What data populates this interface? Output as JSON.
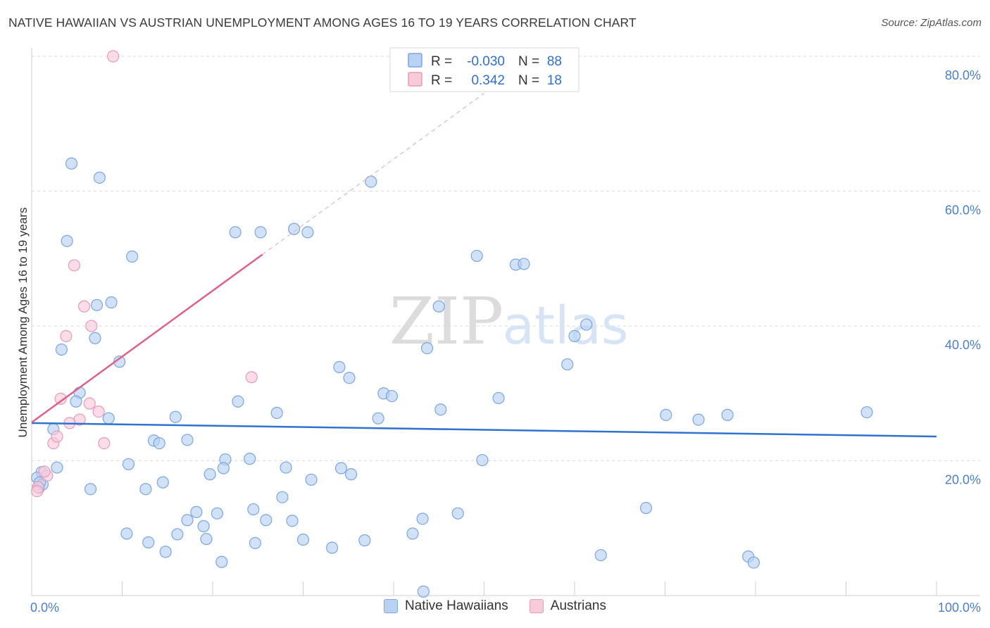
{
  "title": "NATIVE HAWAIIAN VS AUSTRIAN UNEMPLOYMENT AMONG AGES 16 TO 19 YEARS CORRELATION CHART",
  "source": "Source: ZipAtlas.com",
  "watermark": {
    "zip": "ZIP",
    "atlas": "atlas"
  },
  "colors": {
    "blue_fill": "#b9d1f3",
    "blue_stroke": "#7aa6e3",
    "blue_line": "#2f72cf",
    "pink_fill": "#f8cbdb",
    "pink_stroke": "#e99ab6",
    "pink_line": "#e0608c",
    "grid": "#d9d9d9",
    "tick_text": "#4a7fd0"
  },
  "stats": [
    {
      "r_label": "R =",
      "r_value": "-0.030",
      "n_label": "N =",
      "n_value": "88"
    },
    {
      "r_label": "R =",
      "r_value": "0.342",
      "n_label": "N =",
      "n_value": "18"
    }
  ],
  "chart_data": {
    "type": "scatter",
    "title": "NATIVE HAWAIIAN VS AUSTRIAN UNEMPLOYMENT AMONG AGES 16 TO 19 YEARS CORRELATION CHART",
    "xlabel": "",
    "ylabel": "Unemployment Among Ages 16 to 19 years",
    "xlim": [
      0,
      100
    ],
    "ylim": [
      0,
      80
    ],
    "x_tick_labels": [
      "0.0%",
      "100.0%"
    ],
    "y_ticks": [
      20,
      40,
      60,
      80
    ],
    "y_tick_labels": [
      "20.0%",
      "40.0%",
      "60.0%",
      "80.0%"
    ],
    "legend_position": "bottom-center",
    "series": [
      {
        "name": "Native Hawaiians",
        "color": "#b9d1f3",
        "trend": {
          "x": [
            0,
            100
          ],
          "y": [
            25.6,
            23.6
          ],
          "dashed_ext": false
        },
        "points": [
          [
            4.4,
            64.1
          ],
          [
            7.5,
            62.0
          ],
          [
            3.9,
            52.6
          ],
          [
            11.1,
            50.3
          ],
          [
            22.5,
            53.9
          ],
          [
            25.3,
            53.9
          ],
          [
            29.0,
            54.4
          ],
          [
            30.5,
            53.9
          ],
          [
            37.5,
            61.4
          ],
          [
            49.2,
            50.4
          ],
          [
            53.5,
            49.1
          ],
          [
            54.4,
            49.2
          ],
          [
            8.8,
            43.5
          ],
          [
            7.2,
            43.1
          ],
          [
            3.3,
            36.5
          ],
          [
            7.0,
            38.2
          ],
          [
            9.7,
            34.7
          ],
          [
            45.0,
            42.9
          ],
          [
            61.3,
            40.2
          ],
          [
            60.0,
            38.5
          ],
          [
            34.0,
            33.9
          ],
          [
            35.1,
            32.3
          ],
          [
            43.7,
            36.7
          ],
          [
            59.2,
            34.3
          ],
          [
            5.3,
            30.1
          ],
          [
            4.9,
            28.8
          ],
          [
            38.9,
            30.0
          ],
          [
            39.8,
            29.6
          ],
          [
            22.8,
            28.8
          ],
          [
            27.1,
            27.1
          ],
          [
            45.2,
            27.6
          ],
          [
            51.6,
            29.3
          ],
          [
            8.5,
            26.3
          ],
          [
            15.9,
            26.5
          ],
          [
            38.3,
            26.3
          ],
          [
            70.1,
            26.8
          ],
          [
            73.7,
            26.1
          ],
          [
            76.9,
            26.8
          ],
          [
            92.3,
            27.2
          ],
          [
            2.4,
            24.7
          ],
          [
            13.5,
            23.0
          ],
          [
            14.1,
            22.6
          ],
          [
            17.2,
            23.1
          ],
          [
            1.1,
            18.3
          ],
          [
            2.8,
            19.0
          ],
          [
            10.7,
            19.5
          ],
          [
            21.4,
            20.2
          ],
          [
            24.1,
            20.3
          ],
          [
            30.9,
            17.2
          ],
          [
            34.2,
            18.9
          ],
          [
            35.3,
            18.0
          ],
          [
            28.1,
            19.0
          ],
          [
            49.8,
            20.1
          ],
          [
            0.8,
            16.0
          ],
          [
            0.6,
            17.5
          ],
          [
            6.5,
            15.8
          ],
          [
            12.6,
            15.8
          ],
          [
            14.5,
            16.8
          ],
          [
            19.7,
            18.0
          ],
          [
            21.2,
            18.9
          ],
          [
            27.7,
            14.6
          ],
          [
            18.2,
            12.4
          ],
          [
            20.5,
            12.2
          ],
          [
            24.5,
            12.8
          ],
          [
            17.2,
            11.2
          ],
          [
            19.0,
            10.3
          ],
          [
            25.9,
            11.2
          ],
          [
            28.8,
            11.1
          ],
          [
            43.2,
            11.4
          ],
          [
            47.1,
            12.2
          ],
          [
            67.9,
            13.0
          ],
          [
            10.5,
            9.2
          ],
          [
            16.1,
            9.1
          ],
          [
            19.3,
            8.4
          ],
          [
            24.7,
            7.8
          ],
          [
            30.0,
            8.3
          ],
          [
            36.8,
            8.2
          ],
          [
            42.1,
            9.2
          ],
          [
            12.9,
            7.9
          ],
          [
            14.8,
            6.5
          ],
          [
            33.2,
            7.1
          ],
          [
            62.9,
            6.0
          ],
          [
            79.2,
            5.8
          ],
          [
            79.8,
            4.9
          ],
          [
            21.0,
            5.0
          ],
          [
            43.3,
            0.6
          ],
          [
            1.2,
            16.5
          ],
          [
            0.9,
            16.8
          ]
        ]
      },
      {
        "name": "Austrians",
        "color": "#f8cbdb",
        "trend": {
          "x": [
            0,
            25.5
          ],
          "y": [
            25.7,
            50.6
          ],
          "dashed_ext": {
            "x": [
              25.5,
              50.0
            ],
            "y": [
              50.6,
              74.5
            ]
          }
        },
        "points": [
          [
            9.0,
            80.0
          ],
          [
            4.7,
            49.0
          ],
          [
            5.8,
            42.9
          ],
          [
            6.6,
            40.0
          ],
          [
            3.8,
            38.5
          ],
          [
            24.3,
            32.4
          ],
          [
            3.2,
            29.2
          ],
          [
            6.4,
            28.5
          ],
          [
            7.4,
            27.3
          ],
          [
            5.3,
            26.1
          ],
          [
            4.2,
            25.6
          ],
          [
            8.0,
            22.6
          ],
          [
            2.4,
            22.6
          ],
          [
            2.8,
            23.6
          ],
          [
            1.7,
            17.8
          ],
          [
            1.4,
            18.4
          ],
          [
            0.7,
            16.1
          ],
          [
            0.6,
            15.5
          ]
        ]
      }
    ]
  }
}
